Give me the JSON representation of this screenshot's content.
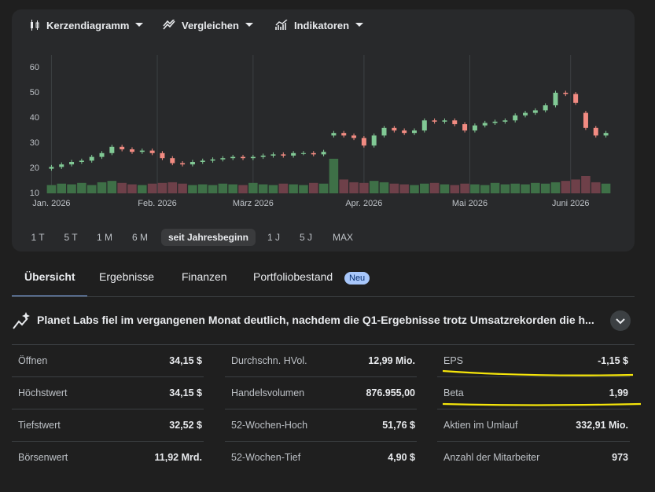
{
  "toolbar": [
    "Kerzendiagramm",
    "Vergleichen",
    "Indikatoren"
  ],
  "chart_data": {
    "type": "candlestick",
    "x": [
      0,
      2,
      4,
      6,
      8,
      10,
      12,
      14,
      16,
      18,
      20,
      22,
      24,
      26,
      28,
      30,
      32,
      34,
      36,
      38,
      40,
      42,
      44,
      46,
      48,
      50,
      52,
      54,
      56,
      58,
      60,
      62,
      64,
      66,
      68,
      70,
      72,
      74,
      76,
      78,
      80,
      82,
      84,
      86,
      88,
      90,
      92,
      94,
      96,
      98,
      100,
      102,
      104,
      106,
      108,
      110
    ],
    "open": [
      19.8,
      20.5,
      21.5,
      22.5,
      23,
      24.5,
      26,
      28.5,
      27.5,
      26.5,
      27,
      26,
      24,
      22,
      21.5,
      22.5,
      23,
      23.5,
      24,
      24.5,
      24,
      24.5,
      25,
      25.5,
      25,
      26,
      26,
      25.5,
      33,
      34,
      33,
      32,
      29,
      33,
      36,
      35,
      34,
      35,
      39,
      38.5,
      39,
      37.5,
      35,
      37,
      38,
      38.5,
      39,
      41,
      42,
      43,
      45,
      50,
      49.5,
      42,
      36,
      33
    ],
    "high": [
      21.3,
      22.3,
      23.3,
      23.8,
      25.3,
      26.8,
      29.3,
      29.3,
      28.3,
      27.8,
      27.8,
      26.8,
      24.8,
      22.8,
      23.3,
      23.8,
      24.3,
      24.8,
      25.3,
      25.3,
      25.3,
      25.8,
      26.3,
      26.3,
      26.8,
      26.8,
      26.8,
      27.3,
      34.8,
      34.8,
      33.8,
      32.8,
      33.8,
      36.8,
      36.8,
      35.8,
      35.8,
      39.8,
      39.8,
      39.8,
      39.8,
      38.3,
      37.8,
      38.8,
      39.3,
      39.8,
      41.8,
      42.8,
      43.8,
      45.8,
      50.8,
      50.8,
      50.3,
      42.8,
      36.8,
      34.8
    ],
    "low": [
      19,
      19.7,
      20.7,
      21.7,
      22.2,
      23.7,
      25.2,
      26.7,
      25.7,
      25.7,
      25.2,
      23.2,
      21.2,
      20.7,
      20.7,
      21.7,
      22.2,
      22.7,
      23.2,
      23.2,
      23.2,
      23.7,
      24.2,
      24.2,
      24.2,
      25.2,
      24.7,
      24.7,
      32.2,
      32.2,
      31.2,
      28.2,
      28.2,
      32.2,
      34.2,
      33.2,
      33.2,
      34.2,
      37.7,
      37.7,
      36.7,
      34.2,
      34.2,
      36.2,
      37.2,
      37.7,
      38.2,
      40.2,
      41.2,
      42.2,
      44.2,
      48.7,
      45.2,
      35.2,
      32.2,
      32.2
    ],
    "close": [
      20.5,
      21.5,
      22.5,
      23,
      24.5,
      26,
      28.5,
      27.5,
      26.5,
      27,
      26,
      24,
      22,
      21.5,
      22.5,
      23,
      23.5,
      24,
      24.5,
      24,
      24.5,
      25,
      25.5,
      25,
      26,
      26,
      25.5,
      26.5,
      34,
      33,
      32,
      29,
      33,
      36,
      35,
      34,
      35,
      39,
      38.5,
      39,
      37.5,
      35,
      37,
      38,
      38.5,
      39,
      41,
      42,
      43,
      45,
      50,
      49.5,
      46,
      36,
      33,
      34
    ],
    "volume": [
      12,
      14,
      13,
      15,
      12,
      16,
      18,
      15,
      13,
      12,
      14,
      15,
      16,
      14,
      12,
      13,
      12,
      14,
      13,
      12,
      15,
      13,
      12,
      14,
      13,
      12,
      15,
      14,
      50,
      20,
      16,
      15,
      18,
      16,
      14,
      13,
      12,
      14,
      15,
      13,
      12,
      14,
      13,
      12,
      15,
      13,
      14,
      13,
      15,
      14,
      16,
      18,
      20,
      25,
      16,
      14
    ],
    "up_color": "#81c995",
    "down_color": "#f28b82",
    "up_volume_color": "#3e7047",
    "down_volume_color": "#6e4049",
    "xlim": [
      -1,
      111
    ],
    "xticks": [
      {
        "value": 0,
        "label": "Jan. 2026"
      },
      {
        "value": 21,
        "label": "Feb. 2026"
      },
      {
        "value": 40,
        "label": "März 2026"
      },
      {
        "value": 62,
        "label": "Apr. 2026"
      },
      {
        "value": 83,
        "label": "Mai 2026"
      },
      {
        "value": 103,
        "label": "Juni 2026"
      }
    ],
    "ylim": [
      10,
      65
    ],
    "yticks": [
      10,
      20,
      30,
      40,
      50,
      60
    ],
    "y2lim": [
      0,
      200
    ],
    "grid": true
  },
  "ranges": [
    "1 T",
    "5 T",
    "1 M",
    "6 M",
    "seit Jahresbeginn",
    "1 J",
    "5 J",
    "MAX"
  ],
  "tabs": [
    "Übersicht",
    "Ergebnisse",
    "Finanzen",
    "Portfoliobestand"
  ],
  "badge": "Neu",
  "news": "Planet Labs fiel im vergangenen Monat deutlich, nachdem die Q1-Ergebnisse trotz Umsatzrekorden die h...",
  "stats": [
    [
      [
        "Öffnen",
        "34,15 $"
      ],
      [
        "Höchstwert",
        "34,15 $"
      ],
      [
        "Tiefstwert",
        "32,52 $"
      ],
      [
        "Börsenwert",
        "11,92 Mrd."
      ]
    ],
    [
      [
        "Durchschn. HVol.",
        "12,99 Mio."
      ],
      [
        "Handelsvolumen",
        "876.955,00"
      ],
      [
        "52-Wochen-Hoch",
        "51,76 $"
      ],
      [
        "52-Wochen-Tief",
        "4,90 $"
      ]
    ],
    [
      [
        "EPS",
        "-1,15 $"
      ],
      [
        "Beta",
        "1,99"
      ],
      [
        "Aktien im Umlauf",
        "332,91 Mio."
      ],
      [
        "Anzahl der Mitarbeiter",
        "973"
      ]
    ]
  ]
}
